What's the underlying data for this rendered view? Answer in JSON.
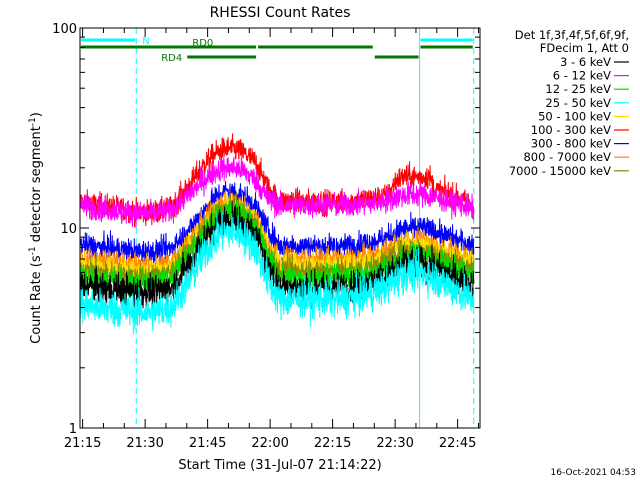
{
  "chart_data": {
    "type": "line",
    "title": "RHESSI Count Rates",
    "xlabel": "Start Time (31-Jul-07 21:14:22)",
    "ylabel_main": "Count Rate (s",
    "ylabel_sup1": "-1",
    "ylabel_mid": " detector segment",
    "ylabel_sup2": "-1",
    "ylabel_end": ")",
    "y_scale": "log",
    "ylim": [
      1,
      100
    ],
    "y_ticks": [
      {
        "value": 1,
        "label": "1"
      },
      {
        "value": 10,
        "label": "10"
      },
      {
        "value": 100,
        "label": "100"
      }
    ],
    "xlim_minutes": [
      0,
      96
    ],
    "x_ticks": [
      {
        "minute": 0.63,
        "label": "21:15"
      },
      {
        "minute": 15.63,
        "label": "21:30"
      },
      {
        "minute": 30.63,
        "label": "21:45"
      },
      {
        "minute": 45.63,
        "label": "22:00"
      },
      {
        "minute": 60.63,
        "label": "22:15"
      },
      {
        "minute": 75.63,
        "label": "22:30"
      },
      {
        "minute": 90.63,
        "label": "22:45"
      }
    ],
    "legend_header": [
      "Det 1f,3f,4f,5f,6f,9f,",
      "FDecim 1, Att 0"
    ],
    "legend_placement": "right",
    "series": [
      {
        "name": "3 - 6 keV",
        "color": "#000000",
        "t": [
          0,
          5,
          10,
          14,
          18,
          22,
          26,
          30,
          33,
          35,
          37,
          39,
          42,
          45,
          48,
          50,
          54,
          58,
          62,
          66,
          70,
          74,
          77,
          80,
          82,
          85,
          88,
          91,
          94
        ],
        "values": [
          5.2,
          5.0,
          4.9,
          4.8,
          4.8,
          5.0,
          6.5,
          8.8,
          10.5,
          11.0,
          11.0,
          10.5,
          9.2,
          6.5,
          5.0,
          5.1,
          5.0,
          5.0,
          5.0,
          5.1,
          5.3,
          5.8,
          6.5,
          6.7,
          6.7,
          6.3,
          5.9,
          5.5,
          5.2
        ]
      },
      {
        "name": "6 - 12 keV",
        "color": "#ff00ff",
        "t": [
          0,
          5,
          10,
          14,
          18,
          22,
          26,
          30,
          33,
          35,
          37,
          39,
          42,
          45,
          48,
          50,
          54,
          58,
          62,
          66,
          70,
          74,
          77,
          80,
          82,
          85,
          88,
          91,
          94
        ],
        "values": [
          13.0,
          12.5,
          12.2,
          11.8,
          11.8,
          12.3,
          14.5,
          17.5,
          19.5,
          20.0,
          20.0,
          19.5,
          17.5,
          14.0,
          12.8,
          13.0,
          13.0,
          13.0,
          13.0,
          13.1,
          13.3,
          13.8,
          14.5,
          14.7,
          14.7,
          14.2,
          13.8,
          13.2,
          12.5
        ]
      },
      {
        "name": "12 - 25 keV",
        "color": "#00dd00",
        "t": [
          0,
          5,
          10,
          14,
          18,
          22,
          26,
          30,
          33,
          35,
          37,
          39,
          42,
          45,
          48,
          50,
          54,
          58,
          62,
          66,
          70,
          74,
          77,
          80,
          82,
          85,
          88,
          91,
          94
        ],
        "values": [
          5.8,
          5.6,
          5.4,
          5.3,
          5.3,
          5.6,
          7.2,
          9.5,
          11.5,
          12.0,
          12.0,
          11.5,
          10.0,
          7.2,
          5.6,
          5.7,
          5.6,
          5.6,
          5.6,
          5.7,
          5.9,
          6.4,
          7.1,
          7.3,
          7.3,
          6.9,
          6.5,
          6.1,
          5.8
        ]
      },
      {
        "name": "25 - 50 keV",
        "color": "#00ffff",
        "t": [
          0,
          5,
          10,
          14,
          18,
          22,
          26,
          30,
          33,
          35,
          37,
          39,
          42,
          45,
          48,
          50,
          54,
          58,
          62,
          66,
          70,
          74,
          77,
          80,
          82,
          85,
          88,
          91,
          94
        ],
        "values": [
          4.2,
          4.0,
          3.9,
          3.8,
          3.8,
          4.0,
          5.3,
          7.5,
          9.2,
          9.6,
          9.6,
          9.2,
          8.0,
          5.5,
          4.3,
          4.4,
          4.4,
          4.4,
          4.4,
          4.5,
          4.7,
          5.2,
          5.8,
          6.0,
          6.0,
          5.6,
          5.2,
          4.8,
          4.4
        ]
      },
      {
        "name": "50 - 100 keV",
        "color": "#ffdd00",
        "t": [
          0,
          5,
          10,
          14,
          18,
          22,
          26,
          30,
          33,
          35,
          37,
          39,
          42,
          45,
          48,
          50,
          54,
          58,
          62,
          66,
          70,
          74,
          77,
          80,
          82,
          85,
          88,
          91,
          94
        ],
        "values": [
          6.6,
          6.4,
          6.2,
          6.1,
          6.1,
          6.4,
          8.0,
          10.3,
          12.3,
          12.9,
          12.9,
          12.3,
          10.8,
          8.0,
          6.5,
          6.6,
          6.5,
          6.5,
          6.5,
          6.6,
          6.8,
          7.3,
          8.0,
          8.2,
          8.2,
          7.8,
          7.4,
          7.0,
          6.6
        ]
      },
      {
        "name": "100 - 300 keV",
        "color": "#ff0000",
        "t": [
          0,
          5,
          10,
          14,
          18,
          22,
          26,
          30,
          33,
          35,
          37,
          39,
          42,
          45,
          48,
          50,
          54,
          58,
          62,
          66,
          70,
          74,
          76,
          78,
          80,
          82,
          84,
          85,
          88,
          91,
          94
        ],
        "values": [
          13.5,
          13.0,
          12.5,
          12.0,
          12.0,
          12.5,
          16.0,
          21.0,
          24.0,
          25.0,
          25.0,
          24.0,
          21.5,
          16.0,
          13.5,
          13.8,
          13.5,
          13.5,
          13.5,
          13.7,
          14.0,
          14.5,
          17.5,
          18.0,
          18.0,
          18.0,
          18.0,
          15.5,
          15.0,
          14.0,
          13.0
        ]
      },
      {
        "name": "300 - 800 keV",
        "color": "#0000ff",
        "t": [
          0,
          5,
          10,
          14,
          18,
          22,
          26,
          30,
          33,
          35,
          37,
          39,
          42,
          45,
          48,
          50,
          54,
          58,
          62,
          66,
          70,
          74,
          77,
          80,
          82,
          85,
          88,
          91,
          94
        ],
        "values": [
          8.2,
          8.0,
          7.8,
          7.6,
          7.6,
          8.0,
          9.6,
          12.3,
          14.5,
          15.2,
          15.2,
          14.5,
          12.8,
          9.8,
          8.1,
          8.2,
          8.1,
          8.1,
          8.1,
          8.2,
          8.5,
          9.0,
          9.8,
          10.0,
          10.0,
          9.6,
          9.1,
          8.6,
          8.2
        ]
      },
      {
        "name": "800 - 7000 keV",
        "color": "#ff8800",
        "t": [
          0,
          5,
          10,
          14,
          18,
          22,
          26,
          30,
          33,
          35,
          37,
          39,
          42,
          45,
          48,
          50,
          54,
          58,
          62,
          66,
          70,
          74,
          77,
          80,
          82,
          85,
          88,
          91,
          94
        ],
        "values": [
          7.0,
          6.8,
          6.6,
          6.4,
          6.4,
          6.8,
          8.4,
          10.8,
          12.8,
          13.4,
          13.4,
          12.8,
          11.3,
          8.4,
          6.9,
          7.0,
          6.9,
          6.9,
          6.9,
          7.0,
          7.2,
          7.7,
          8.4,
          8.6,
          8.6,
          8.2,
          7.8,
          7.4,
          7.0
        ]
      },
      {
        "name": "7000 - 15000 keV",
        "color": "#888800",
        "t": [
          0,
          5,
          10,
          14,
          18,
          22,
          26,
          30,
          33,
          35,
          37,
          39,
          42,
          45,
          48,
          50,
          54,
          58,
          62,
          66,
          70,
          74,
          77,
          80,
          82,
          85,
          88,
          91,
          94
        ],
        "values": [
          6.2,
          6.0,
          5.8,
          5.7,
          5.7,
          6.0,
          7.5,
          9.9,
          11.9,
          12.5,
          12.5,
          11.9,
          10.4,
          7.5,
          6.1,
          6.2,
          6.1,
          6.1,
          6.1,
          6.2,
          6.4,
          6.9,
          7.6,
          7.8,
          7.8,
          7.4,
          7.0,
          6.6,
          6.2
        ]
      }
    ],
    "night_boundaries_minutes": [
      0,
      13.5,
      81.5,
      94.5
    ],
    "flags": [
      {
        "label": "N",
        "color": "#00ffff",
        "level": 1,
        "segments": [
          [
            0,
            13.5
          ],
          [
            81.5,
            94.5
          ]
        ]
      },
      {
        "label": "RD0",
        "color": "#007700",
        "level": 2,
        "segments": [
          [
            0,
            42.5
          ],
          [
            42.5,
            70.5
          ],
          [
            81.5,
            94.5
          ]
        ]
      },
      {
        "label": "RD4",
        "color": "#007700",
        "level": 3,
        "segments": [
          [
            25.5,
            42.5
          ],
          [
            70.5,
            81.5
          ]
        ]
      }
    ],
    "footer_timestamp": "16-Oct-2021 04:53"
  }
}
